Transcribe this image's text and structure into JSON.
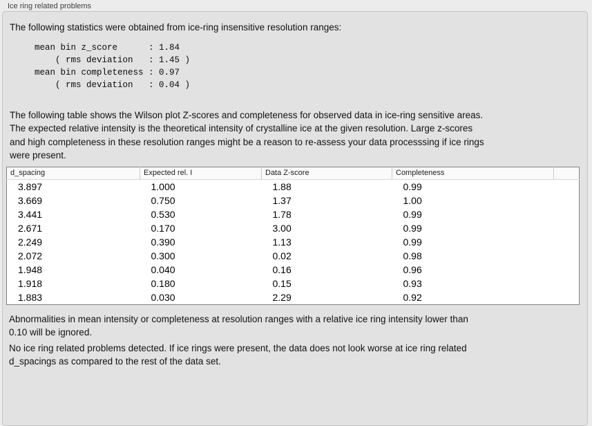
{
  "panel": {
    "title": "Ice ring related problems"
  },
  "intro": {
    "text": "The following statistics were obtained from ice-ring insensitive resolution ranges:"
  },
  "stats_block": {
    "text": "mean bin z_score      : 1.84\n    ( rms deviation   : 1.45 )\nmean bin completeness : 0.97\n    ( rms deviation   : 0.04 )"
  },
  "table_intro": {
    "text": "The following table shows the Wilson plot Z-scores and completeness for observed data in ice-ring sensitive areas.\nThe expected relative intensity is the theoretical intensity of crystalline ice at the given resolution. Large z-scores\nand high completeness in these resolution ranges might be a reason to re-assess your data processsing if ice rings\nwere present."
  },
  "table": {
    "columns": [
      "d_spacing",
      "Expected rel. I",
      "Data Z-score",
      "Completeness",
      ""
    ],
    "rows": [
      [
        "3.897",
        "1.000",
        "1.88",
        "0.99"
      ],
      [
        "3.669",
        "0.750",
        "1.37",
        "1.00"
      ],
      [
        "3.441",
        "0.530",
        "1.78",
        "0.99"
      ],
      [
        "2.671",
        "0.170",
        "3.00",
        "0.99"
      ],
      [
        "2.249",
        "0.390",
        "1.13",
        "0.99"
      ],
      [
        "2.072",
        "0.300",
        "0.02",
        "0.98"
      ],
      [
        "1.948",
        "0.040",
        "0.16",
        "0.96"
      ],
      [
        "1.918",
        "0.180",
        "0.15",
        "0.93"
      ],
      [
        "1.883",
        "0.030",
        "2.29",
        "0.92"
      ]
    ]
  },
  "note_ignore": {
    "text": "Abnormalities in mean intensity or completeness at resolution ranges with a relative ice ring intensity lower than\n0.10 will be ignored."
  },
  "conclusion": {
    "text": "No ice ring related problems detected. If ice rings were present, the data does not look worse at ice ring related\nd_spacings as compared to the rest of the data set."
  }
}
